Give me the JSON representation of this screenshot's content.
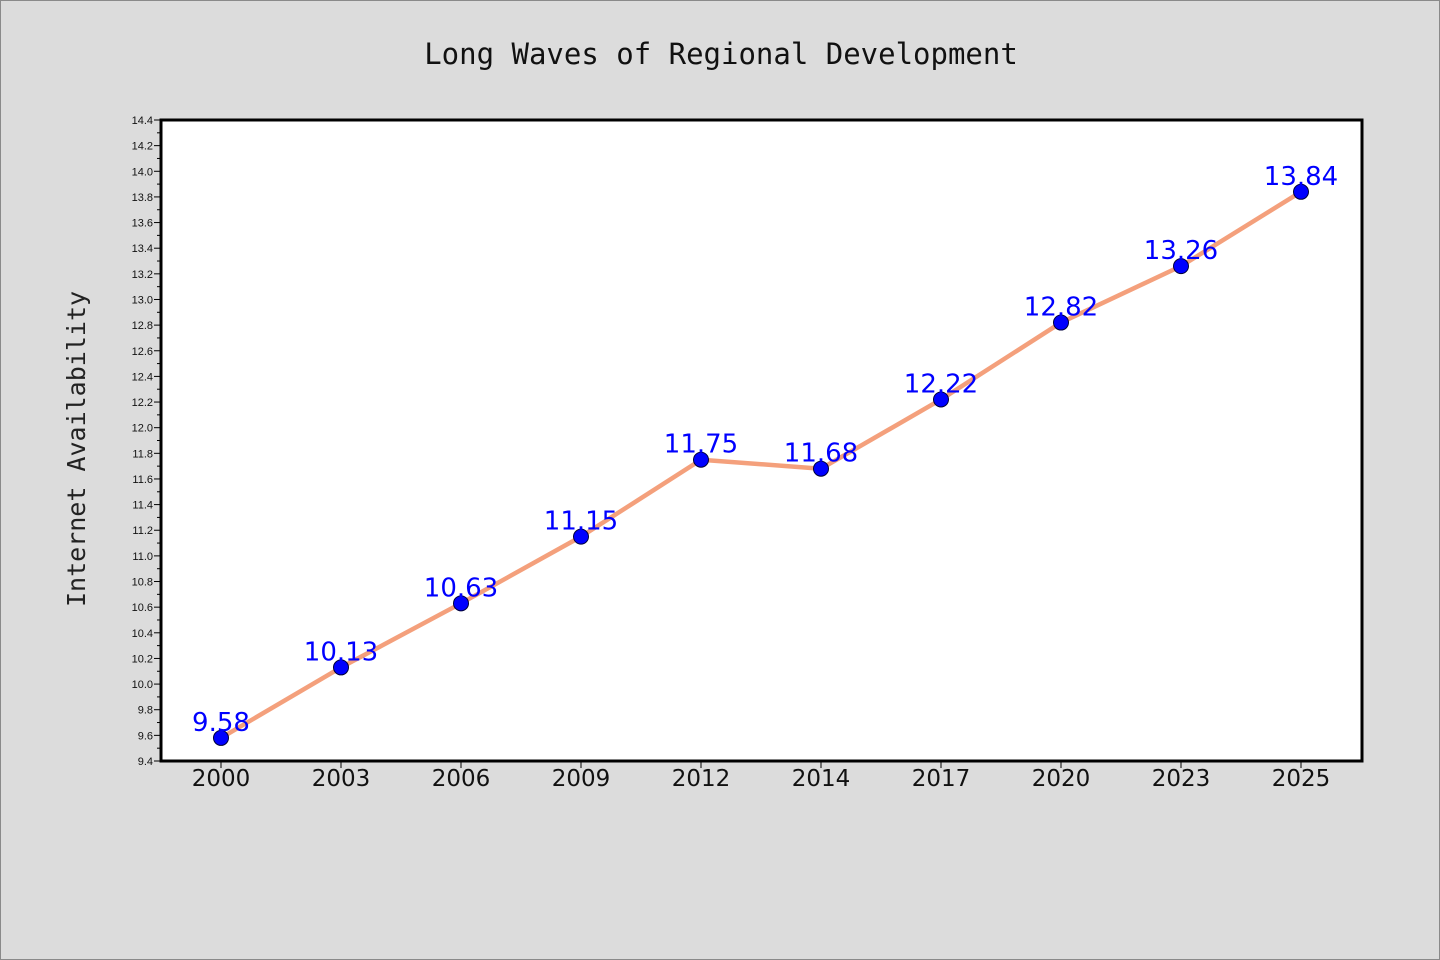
{
  "colors": {
    "background": "#dcdcdc",
    "plot_background": "#ffffff",
    "line": "#f4a07c",
    "marker": "#0000ff",
    "label": "#0000ff"
  },
  "chart_data": {
    "type": "line",
    "title": "Long Waves of Regional Development",
    "xlabel": "",
    "ylabel": "Internet Availability",
    "categories": [
      "2000",
      "2003",
      "2006",
      "2009",
      "2012",
      "2014",
      "2017",
      "2020",
      "2023",
      "2025"
    ],
    "series": [
      {
        "values": [
          9.58,
          10.13,
          10.63,
          11.15,
          11.75,
          11.68,
          12.22,
          12.82,
          13.26,
          13.84
        ],
        "labels": [
          "9.58",
          "10.13",
          "10.63",
          "11.15",
          "11.75",
          "11.68",
          "12.22",
          "12.82",
          "13.26",
          "13.84"
        ]
      }
    ],
    "ylim": [
      9.4,
      14.4
    ],
    "yticks": [
      "9.4",
      "9.6",
      "9.8",
      "10.0",
      "10.2",
      "10.4",
      "10.6",
      "10.8",
      "11.0",
      "11.2",
      "11.4",
      "11.6",
      "11.8",
      "12.0",
      "12.2",
      "12.4",
      "12.6",
      "12.8",
      "13.0",
      "13.2",
      "13.4",
      "13.6",
      "13.8",
      "14.0",
      "14.2",
      "14.4"
    ],
    "grid": false,
    "legend": "none",
    "markers": "circle",
    "data_labels": true
  }
}
